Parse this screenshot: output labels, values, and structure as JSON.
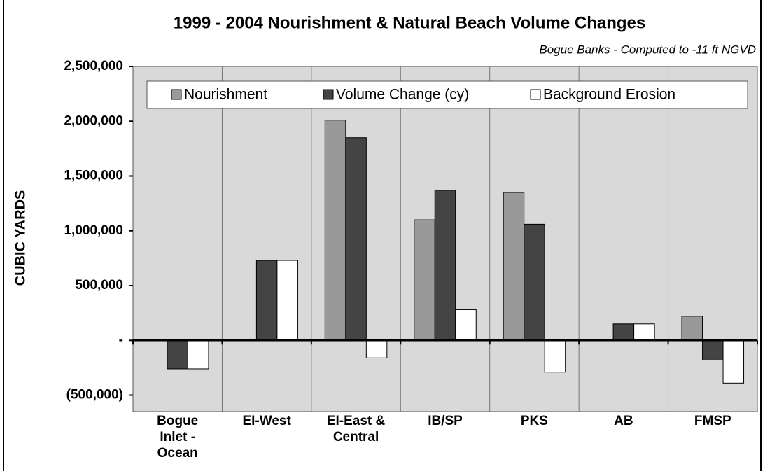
{
  "chart_data": {
    "type": "bar",
    "title": "1999 - 2004 Nourishment & Natural Beach Volume Changes",
    "subtitle": "Bogue Banks - Computed to -11 ft NGVD",
    "y_label": "CUBIC YARDS",
    "categories": [
      "Bogue Inlet - Ocean",
      "EI-West",
      "EI-East & Central",
      "IB/SP",
      "PKS",
      "AB",
      "FMSP"
    ],
    "series": [
      {
        "name": "Nourishment",
        "color": "#999999",
        "values": [
          0,
          0,
          2010000,
          1100000,
          1350000,
          0,
          220000
        ]
      },
      {
        "name": "Volume Change (cy)",
        "color": "#444444",
        "values": [
          -260000,
          730000,
          1850000,
          1370000,
          1060000,
          150000,
          -180000
        ]
      },
      {
        "name": "Background Erosion",
        "color": "#ffffff",
        "values": [
          -260000,
          730000,
          -160000,
          280000,
          -290000,
          150000,
          -390000
        ]
      }
    ],
    "ylim": [
      -650000,
      2500000
    ],
    "yticks": [
      {
        "value": -500000,
        "label": "(500,000)"
      },
      {
        "value": 0,
        "label": "-"
      },
      {
        "value": 500000,
        "label": "500,000"
      },
      {
        "value": 1000000,
        "label": "1,000,000"
      },
      {
        "value": 1500000,
        "label": "1,500,000"
      },
      {
        "value": 2000000,
        "label": "2,000,000"
      },
      {
        "value": 2500000,
        "label": "2,500,000"
      }
    ],
    "legend": "top"
  }
}
